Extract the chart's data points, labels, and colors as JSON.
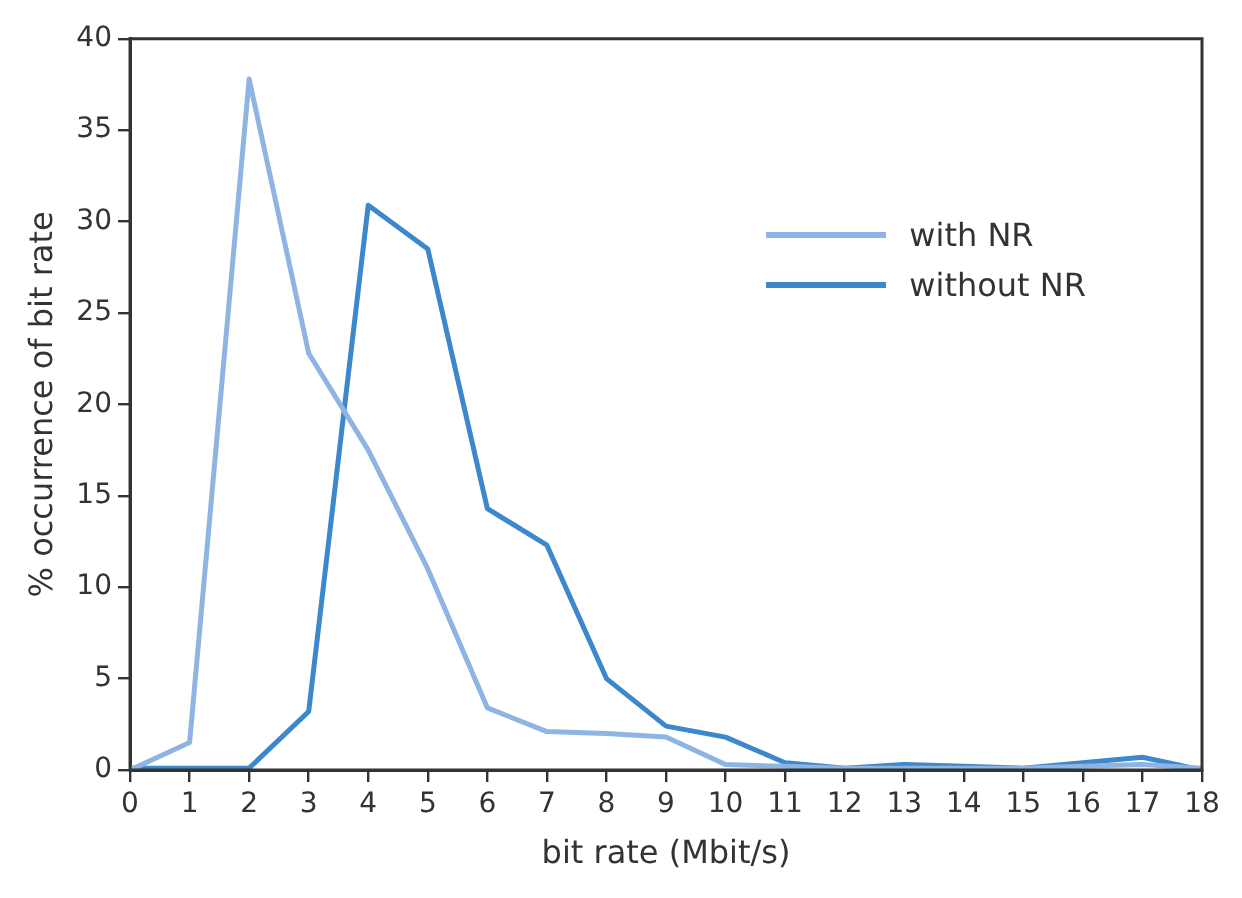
{
  "chart_data": {
    "type": "line",
    "xlabel": "bit rate (Mbit/s)",
    "ylabel": "% occurrence of bit rate",
    "x": [
      0,
      1,
      2,
      3,
      4,
      5,
      6,
      7,
      8,
      9,
      10,
      11,
      12,
      13,
      14,
      15,
      16,
      17,
      18
    ],
    "series": [
      {
        "name": "with NR",
        "color": "#8db4e2",
        "values": [
          0,
          1.5,
          37.8,
          22.8,
          17.5,
          11,
          3.4,
          2.1,
          2,
          1.8,
          0.3,
          0.2,
          0.1,
          0.1,
          0.1,
          0.1,
          0.2,
          0.3,
          0.1
        ]
      },
      {
        "name": "without NR",
        "color": "#3d87cc",
        "values": [
          0.1,
          0.1,
          0.1,
          3.2,
          30.9,
          28.5,
          14.3,
          12.3,
          5,
          2.4,
          1.8,
          0.4,
          0.1,
          0.3,
          0.2,
          0.1,
          0.4,
          0.7,
          0
        ]
      }
    ],
    "xlim": [
      0,
      18
    ],
    "xticks": [
      0,
      1,
      2,
      3,
      4,
      5,
      6,
      7,
      8,
      9,
      10,
      11,
      12,
      13,
      14,
      15,
      16,
      17,
      18
    ],
    "ylim": [
      0,
      40
    ],
    "yticks": [
      0,
      5,
      10,
      15,
      20,
      25,
      30,
      35,
      40
    ],
    "grid": false,
    "legend": "top right",
    "marker": "none",
    "line_style": "solid"
  }
}
